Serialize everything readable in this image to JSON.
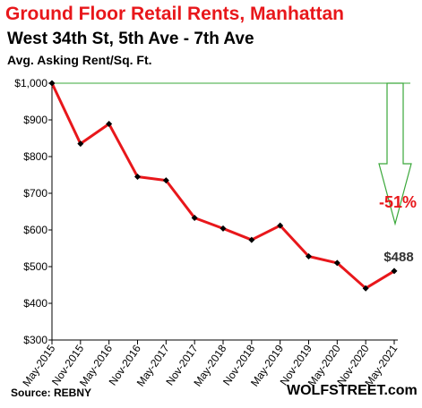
{
  "chart_data": {
    "type": "line",
    "title": "Ground  Floor Retail Rents, Manhattan",
    "subtitle": "West 34th St, 5th Ave - 7th Ave",
    "ylabel": "Avg. Asking Rent/Sq. Ft.",
    "categories": [
      "May-2015",
      "Nov-2015",
      "May-2016",
      "Nov-2016",
      "May-2017",
      "Nov-2017",
      "May-2018",
      "Nov-2018",
      "May-2019",
      "Nov-2019",
      "May-2020",
      "Nov-2020",
      "May-2021"
    ],
    "series": [
      {
        "values": [
          1000,
          835,
          889,
          745,
          735,
          633,
          604,
          573,
          612,
          528,
          510,
          441,
          488
        ],
        "color": "#e8171b"
      }
    ],
    "ylim": [
      300,
      1000
    ],
    "yticks": [
      300,
      400,
      500,
      600,
      700,
      800,
      900,
      1000
    ],
    "ytick_labels": [
      "$300",
      "$400",
      "$500",
      "$600",
      "$700",
      "$800",
      "$900",
      "$1,000"
    ],
    "grid": false,
    "annotations": {
      "last_value_label": "$488",
      "change_label": "-51%",
      "change_color": "#e8171b",
      "arrow_color": "#3aa83a"
    }
  },
  "footer": {
    "source": "Source: REBNY",
    "brand": "WOLFSTREET.com"
  }
}
